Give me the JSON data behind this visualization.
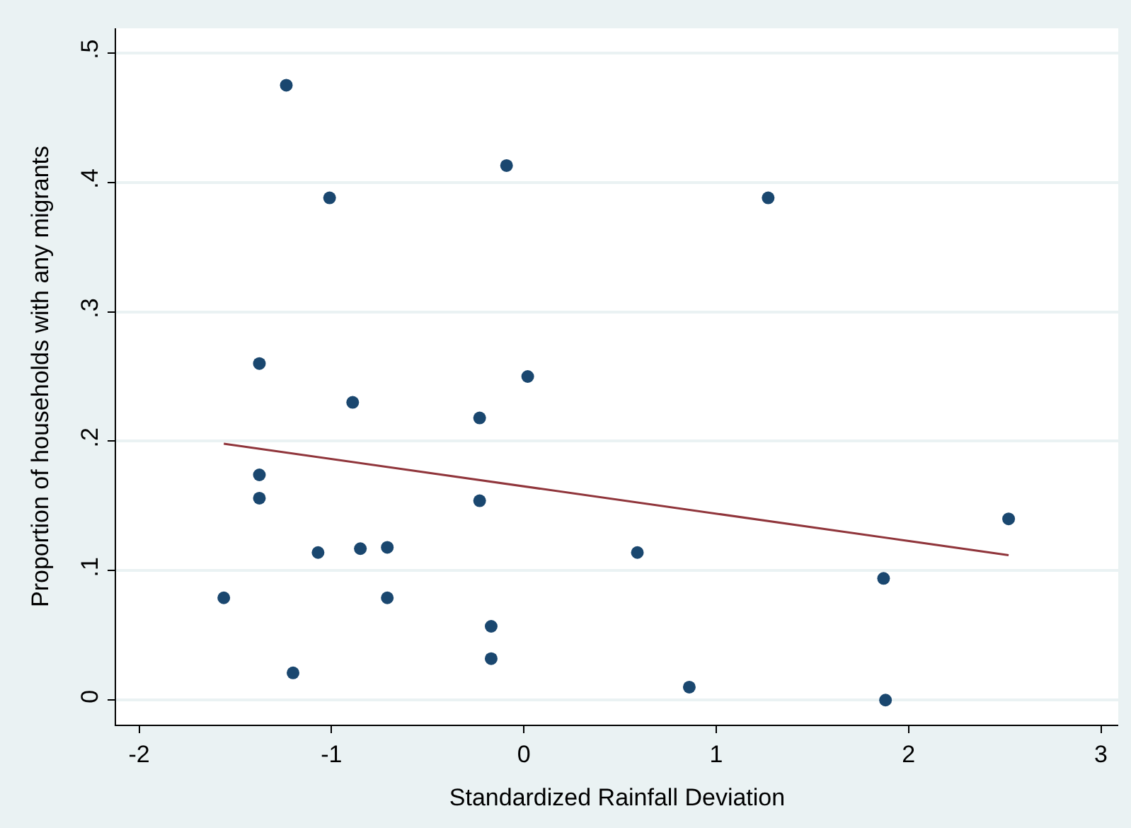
{
  "chart_data": {
    "type": "scatter",
    "xlabel": "Standardized Rainfall Deviation",
    "ylabel": "Proportion of households with any migrants",
    "series": [
      {
        "color": "#1a476f",
        "marker": "circle",
        "x": [
          -1.235,
          -0.09,
          -1.01,
          1.27,
          -1.375,
          0.02,
          -0.89,
          -0.23,
          -1.375,
          -1.375,
          -0.23,
          -1.07,
          -0.85,
          -0.71,
          0.59,
          2.52,
          -1.56,
          -0.71,
          1.87,
          -0.17,
          -0.17,
          -1.2,
          0.86,
          1.88
        ],
        "values": [
          0.475,
          0.413,
          0.388,
          0.388,
          0.26,
          0.25,
          0.23,
          0.218,
          0.174,
          0.156,
          0.154,
          0.114,
          0.117,
          0.118,
          0.114,
          0.14,
          0.079,
          0.079,
          0.094,
          0.057,
          0.032,
          0.021,
          0.01,
          0.0
        ]
      },
      {
        "type": "line",
        "color": "#90353b",
        "marker": "none",
        "x": [
          -1.56,
          2.52
        ],
        "values": [
          0.198,
          0.112
        ]
      }
    ],
    "xlim": [
      -2.12,
      3.09
    ],
    "ylim": [
      -0.019,
      0.519
    ],
    "xticks": [
      -2,
      -1,
      0,
      1,
      2,
      3
    ],
    "yticks": [
      {
        "value": 0,
        "label": "0"
      },
      {
        "value": 0.1,
        "label": ".1"
      },
      {
        "value": 0.2,
        "label": ".2"
      },
      {
        "value": 0.3,
        "label": ".3"
      },
      {
        "value": 0.4,
        "label": ".4"
      },
      {
        "value": 0.5,
        "label": ".5"
      }
    ],
    "grid": "y",
    "legend": false
  }
}
